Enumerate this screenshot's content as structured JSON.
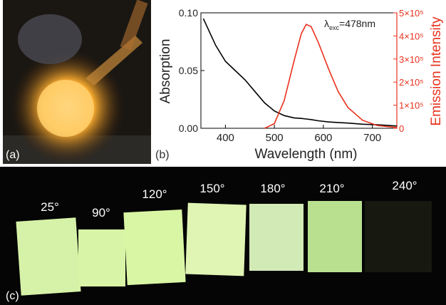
{
  "panel_labels": {
    "a": "(a)",
    "b": "(b)",
    "c": "(c)"
  },
  "photo_c": {
    "labels": [
      "25°",
      "90°",
      "120°",
      "150°",
      "180°",
      "210°",
      "240°"
    ]
  },
  "chart_data": {
    "type": "line",
    "x_label": "Wavelength (nm)",
    "y_label": "Absorption",
    "y2_label": "Emission Intensity",
    "annotation": {
      "symbol": "λ",
      "subscript": "exc",
      "text": "=478nm"
    },
    "x": [
      355,
      380,
      400,
      420,
      440,
      460,
      480,
      500,
      520,
      540,
      555,
      565,
      575,
      590,
      610,
      630,
      650,
      680,
      710,
      750
    ],
    "series": [
      {
        "name": "Absorption",
        "color": "#000000",
        "values": [
          0.095,
          0.072,
          0.058,
          0.05,
          0.042,
          0.032,
          0.022,
          0.015,
          0.011,
          0.009,
          0.0085,
          0.008,
          0.0075,
          0.0065,
          0.0055,
          0.005,
          0.0045,
          0.0035,
          0.003,
          0.002
        ]
      },
      {
        "name": "Emission Intensity",
        "color": "#e8321e",
        "axis": "y2",
        "values": [
          null,
          null,
          null,
          null,
          null,
          null,
          0,
          20000,
          120000,
          290000,
          410000,
          450000,
          440000,
          370000,
          260000,
          160000,
          90000,
          35000,
          12000,
          3000
        ]
      }
    ],
    "xlim": [
      350,
      750
    ],
    "xticks": [
      400,
      500,
      600,
      700
    ],
    "ylim": [
      0,
      0.1
    ],
    "yticks": [
      {
        "value": 0,
        "label": "0.00"
      },
      0.05,
      {
        "value": 0.1,
        "label": "0.10"
      }
    ],
    "y2lim": [
      0,
      500000
    ],
    "y2ticks": [
      0,
      {
        "value": 100000,
        "label": "1×10⁵"
      },
      {
        "value": 200000,
        "label": "2×10⁵"
      },
      {
        "value": 300000,
        "label": "3×10⁵"
      },
      {
        "value": 400000,
        "label": "4×10⁵"
      },
      {
        "value": 500000,
        "label": "5×10⁵"
      }
    ]
  }
}
